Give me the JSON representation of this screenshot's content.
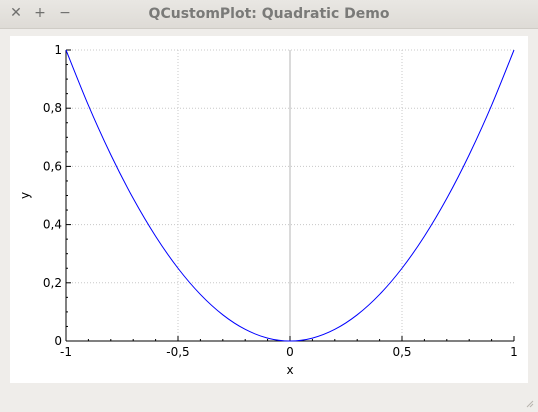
{
  "window": {
    "title": "QCustomPlot: Quadratic Demo",
    "buttons": {
      "close": "✕",
      "maximize": "+",
      "minimize": "−"
    }
  },
  "colors": {
    "curve": "#0000ff",
    "grid": "#c8c8c8",
    "zero_line": "#b4b4b4",
    "axis": "#000000"
  },
  "chart_data": {
    "type": "line",
    "function": "y = x^2",
    "xlabel": "x",
    "ylabel": "y",
    "xlim": [
      -1,
      1
    ],
    "ylim": [
      0,
      1
    ],
    "x_ticks": [
      -1,
      -0.5,
      0,
      0.5,
      1
    ],
    "x_tick_labels": [
      "-1",
      "-0,5",
      "0",
      "0,5",
      "1"
    ],
    "y_ticks": [
      0,
      0.2,
      0.4,
      0.6,
      0.8,
      1
    ],
    "y_tick_labels": [
      "0",
      "0,2",
      "0,4",
      "0,6",
      "0,8",
      "1"
    ],
    "grid": true,
    "series": [
      {
        "x": [
          -1,
          -0.9,
          -0.8,
          -0.7,
          -0.6,
          -0.5,
          -0.4,
          -0.3,
          -0.2,
          -0.1,
          0,
          0.1,
          0.2,
          0.3,
          0.4,
          0.5,
          0.6,
          0.7,
          0.8,
          0.9,
          1
        ],
        "values": [
          1,
          0.81,
          0.64,
          0.49,
          0.36,
          0.25,
          0.16,
          0.09,
          0.04,
          0.01,
          0,
          0.01,
          0.04,
          0.09,
          0.16,
          0.25,
          0.36,
          0.49,
          0.64,
          0.81,
          1
        ]
      }
    ]
  }
}
